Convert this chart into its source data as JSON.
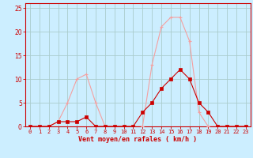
{
  "x": [
    0,
    1,
    2,
    3,
    4,
    5,
    6,
    7,
    8,
    9,
    10,
    11,
    12,
    13,
    14,
    15,
    16,
    17,
    18,
    19,
    20,
    21,
    22,
    23
  ],
  "rafales": [
    0,
    0,
    0,
    1,
    5,
    10,
    11,
    5,
    0,
    0,
    0,
    0,
    0,
    13,
    21,
    23,
    23,
    18,
    3,
    0,
    0,
    0,
    0,
    0
  ],
  "moyen": [
    0,
    0,
    0,
    1,
    1,
    1,
    2,
    0,
    0,
    0,
    0,
    0,
    3,
    5,
    8,
    10,
    12,
    10,
    5,
    3,
    0,
    0,
    0,
    0
  ],
  "color_rafales": "#f4a0a0",
  "color_moyen": "#cc0000",
  "bg_color": "#cceeff",
  "grid_color": "#aacccc",
  "axis_line_color": "#cc0000",
  "tick_color": "#cc0000",
  "xlabel": "Vent moyen/en rafales ( km/h )",
  "ylim": [
    0,
    26
  ],
  "xlim": [
    -0.5,
    23.5
  ],
  "yticks": [
    0,
    5,
    10,
    15,
    20,
    25
  ],
  "xticks": [
    0,
    1,
    2,
    3,
    4,
    5,
    6,
    7,
    8,
    9,
    10,
    11,
    12,
    13,
    14,
    15,
    16,
    17,
    18,
    19,
    20,
    21,
    22,
    23
  ]
}
